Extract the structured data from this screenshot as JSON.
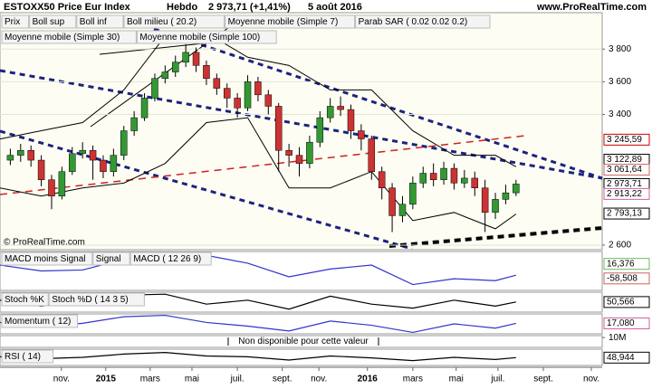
{
  "header": {
    "instrument": "ESTOXX50 Price Eur Index",
    "period": "Hebdo",
    "quote": "2 973,71 (+1,41%)",
    "date": "5 août 2016",
    "site": "www.ProRealTime.com",
    "watermark": "© ProRealTime.com"
  },
  "chart_data": [
    {
      "type": "candlestick",
      "legend": [
        {
          "label": "Prix",
          "color": "#000000"
        },
        {
          "label": "Boll sup",
          "color": "#000000"
        },
        {
          "label": "Boll inf",
          "color": "#000000"
        },
        {
          "label": "Boll milieu ( 20.2)",
          "color": "#3333cc"
        },
        {
          "label": "Moyenne mobile (Simple 7)",
          "color": "#d0609c"
        },
        {
          "label": "Parab SAR ( 0.02 0.02 0.2)",
          "color": "#d06060"
        },
        {
          "label": "Moyenne mobile (Simple 30)",
          "color": "#999933"
        },
        {
          "label": "Moyenne mobile (Simple 100)",
          "color": "#cc0000"
        }
      ],
      "x": [
        2,
        4,
        6,
        8,
        10,
        12,
        14,
        16,
        18,
        20,
        22,
        24,
        26,
        28,
        30,
        32,
        34,
        36,
        38,
        40,
        42,
        44,
        46,
        48,
        50,
        52,
        54,
        56,
        58,
        60,
        62,
        64,
        66,
        68,
        70,
        72,
        74,
        76,
        78,
        80,
        82,
        84,
        86,
        88,
        90,
        92,
        94,
        96,
        98,
        100
      ],
      "open": [
        3120,
        3150,
        3180,
        3120,
        3000,
        2900,
        3050,
        3160,
        3180,
        3120,
        3050,
        3150,
        3300,
        3380,
        3500,
        3620,
        3660,
        3720,
        3780,
        3700,
        3620,
        3560,
        3500,
        3440,
        3600,
        3520,
        3450,
        3180,
        3150,
        3100,
        3230,
        3380,
        3450,
        3430,
        3300,
        3250,
        3050,
        2950,
        2780,
        2850,
        2980,
        3040,
        3000,
        3070,
        2980,
        3010,
        2950,
        2800,
        2880,
        2920
      ],
      "high": [
        3190,
        3220,
        3210,
        3150,
        3030,
        3080,
        3200,
        3230,
        3210,
        3150,
        3190,
        3330,
        3420,
        3530,
        3650,
        3700,
        3760,
        3830,
        3810,
        3730,
        3650,
        3590,
        3530,
        3640,
        3630,
        3550,
        3470,
        3220,
        3200,
        3270,
        3420,
        3500,
        3510,
        3460,
        3340,
        3270,
        3080,
        2980,
        2900,
        3020,
        3080,
        3100,
        3110,
        3100,
        3060,
        3050,
        3000,
        2920,
        2970,
        3000
      ],
      "low": [
        3090,
        3110,
        3080,
        2960,
        2820,
        2880,
        3030,
        3130,
        3000,
        3010,
        3020,
        3120,
        3270,
        3360,
        3480,
        3590,
        3630,
        3690,
        3660,
        3580,
        3520,
        3440,
        3380,
        3420,
        3480,
        3400,
        3050,
        3080,
        3020,
        3070,
        3200,
        3350,
        3390,
        3250,
        3180,
        3000,
        2880,
        2680,
        2740,
        2820,
        2950,
        2960,
        2970,
        2940,
        2950,
        2900,
        2680,
        2760,
        2850,
        2900
      ],
      "close": [
        3150,
        3180,
        3120,
        3000,
        2900,
        3050,
        3160,
        3180,
        3120,
        3050,
        3150,
        3300,
        3380,
        3500,
        3620,
        3660,
        3720,
        3780,
        3700,
        3620,
        3560,
        3500,
        3440,
        3600,
        3520,
        3450,
        3180,
        3150,
        3100,
        3230,
        3380,
        3450,
        3430,
        3300,
        3250,
        3050,
        2950,
        2780,
        2850,
        2980,
        3040,
        3000,
        3070,
        2980,
        3010,
        2950,
        2800,
        2880,
        2920,
        2974
      ],
      "up_color": "#339933",
      "down_color": "#cc3333",
      "series": [
        {
          "name": "Boll sup",
          "color": "#000000",
          "x": [
            0,
            8,
            16,
            24,
            32,
            40,
            48,
            56,
            64,
            72,
            80,
            88,
            96,
            100
          ],
          "values": [
            3250,
            3300,
            3350,
            3550,
            3880,
            3900,
            3750,
            3700,
            3550,
            3550,
            3300,
            3150,
            3150,
            3080
          ]
        },
        {
          "name": "Boll inf",
          "color": "#000000",
          "x": [
            0,
            8,
            16,
            24,
            32,
            40,
            48,
            56,
            64,
            72,
            80,
            88,
            96,
            100
          ],
          "values": [
            2950,
            2900,
            2950,
            2980,
            3100,
            3350,
            3380,
            2950,
            2950,
            3050,
            2750,
            2800,
            2700,
            2790
          ]
        }
      ],
      "xlim": [
        0,
        116.7
      ],
      "xticks": [
        {
          "value": 11.9,
          "label": "nov."
        },
        {
          "value": 20.5,
          "label": "2015"
        },
        {
          "value": 29.1,
          "label": "mars"
        },
        {
          "value": 37.2,
          "label": "mai"
        },
        {
          "value": 46,
          "label": "juil."
        },
        {
          "value": 54.7,
          "label": "sept."
        },
        {
          "value": 61.8,
          "label": "nov."
        },
        {
          "value": 71.2,
          "label": "2016"
        },
        {
          "value": 80,
          "label": "mars"
        },
        {
          "value": 88.4,
          "label": "mai"
        },
        {
          "value": 96.5,
          "label": "juil."
        },
        {
          "value": 105.3,
          "label": "sept."
        },
        {
          "value": 114.6,
          "label": "nov."
        }
      ],
      "ylim": [
        2572,
        4023
      ],
      "yticks": [
        {
          "value": 3800,
          "label": "3 800"
        },
        {
          "value": 3600,
          "label": "3 600"
        },
        {
          "value": 3400,
          "label": "3 400"
        },
        {
          "value": 2600,
          "label": "2 600"
        }
      ],
      "price_markers": [
        {
          "value": 3245.59,
          "label": "3 245,59",
          "color": "#cc0000"
        },
        {
          "value": 3122.89,
          "label": "3 122,89",
          "color": "#000000"
        },
        {
          "value": 3061.64,
          "label": "3 061,64",
          "color": "#d06060"
        },
        {
          "value": 2973.71,
          "label": "2 973,71",
          "color": "#000000"
        },
        {
          "value": 2913.22,
          "label": "2 913,22",
          "color": "#d0609c"
        },
        {
          "value": 2793.13,
          "label": "2 793,13",
          "color": "#000000"
        }
      ],
      "grid": true
    },
    {
      "type": "line",
      "legend": [
        {
          "label": "MACD moins Signal",
          "color": "#66bb66"
        },
        {
          "label": "Signal",
          "color": "#d06060"
        },
        {
          "label": "MACD ( 12 26 9)",
          "color": "#3333cc"
        }
      ],
      "x": [
        0,
        8,
        16,
        24,
        32,
        40,
        48,
        56,
        64,
        72,
        80,
        88,
        96,
        100
      ],
      "values": [
        10,
        -20,
        -15,
        40,
        70,
        60,
        20,
        -50,
        -10,
        10,
        -90,
        -60,
        -70,
        -42
      ],
      "color": "#3333cc",
      "ylim": [
        -120,
        80
      ],
      "markers": [
        {
          "value": 16.376,
          "label": "16,376",
          "color": "#66bb66"
        },
        {
          "value": -58.508,
          "label": "-58,508",
          "color": "#d06060"
        }
      ]
    },
    {
      "type": "line",
      "legend": [
        {
          "label": "Stoch %K",
          "color": "#000000"
        },
        {
          "label": "Stoch %D ( 14 3 5)",
          "color": "#d06060"
        }
      ],
      "x": [
        0,
        8,
        16,
        24,
        32,
        40,
        48,
        56,
        64,
        72,
        80,
        88,
        96,
        100
      ],
      "values": [
        60,
        30,
        55,
        85,
        90,
        40,
        60,
        15,
        80,
        40,
        20,
        60,
        30,
        51
      ],
      "color": "#000000",
      "ylim": [
        0,
        100
      ],
      "markers": [
        {
          "value": 50.566,
          "label": "50,566",
          "color": "#000000"
        }
      ]
    },
    {
      "type": "line",
      "legend": [
        {
          "label": "Momentum ( 12)",
          "color": "#d06060"
        }
      ],
      "x": [
        0,
        8,
        16,
        24,
        32,
        40,
        48,
        56,
        64,
        72,
        80,
        88,
        96,
        100
      ],
      "values": [
        50,
        -100,
        20,
        250,
        300,
        50,
        -80,
        -250,
        100,
        -50,
        -300,
        0,
        -150,
        17
      ],
      "color": "#3333cc",
      "ylim": [
        -350,
        350
      ],
      "markers": [
        {
          "value": 17.08,
          "label": "17,080",
          "color": "#d0609c"
        }
      ]
    },
    {
      "type": "note",
      "note": "Non disponible pour cette valeur",
      "ylim": [
        0,
        12000000
      ],
      "yticks": [
        {
          "value": 10000000,
          "label": "10M"
        }
      ]
    },
    {
      "type": "line",
      "legend": [
        {
          "label": "RSI ( 14)",
          "color": "#000000"
        }
      ],
      "x": [
        0,
        8,
        16,
        24,
        32,
        40,
        48,
        56,
        64,
        72,
        80,
        88,
        96,
        100
      ],
      "values": [
        52,
        45,
        50,
        62,
        68,
        55,
        52,
        40,
        55,
        48,
        38,
        50,
        42,
        49
      ],
      "color": "#000000",
      "ylim": [
        20,
        80
      ],
      "markers": [
        {
          "value": 48.944,
          "label": "48,944",
          "color": "#000000"
        }
      ]
    }
  ]
}
